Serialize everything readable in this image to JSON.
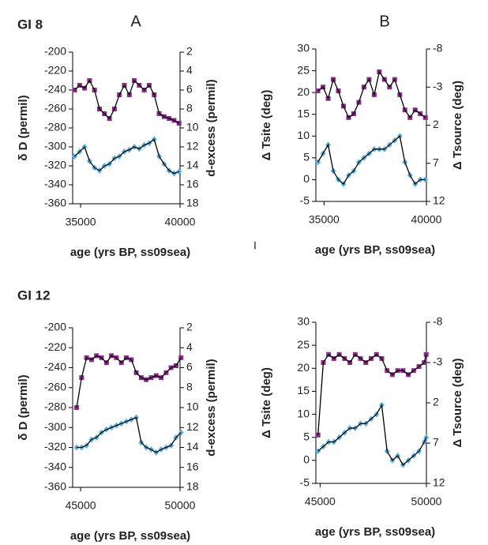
{
  "stray_mark": "I",
  "chart_data": [
    {
      "type": "scatter",
      "group_label": "GI 8",
      "panel_label": "A",
      "xlabel": "age (yrs BP, ss09sea)",
      "ylabel": "δ D (permil)",
      "y2label": "d-excess (permil)",
      "xlim": [
        34600,
        40000
      ],
      "xticks": [
        35000,
        40000
      ],
      "ylim": [
        -360,
        -200
      ],
      "yticks": [
        -360,
        -340,
        -320,
        -300,
        -280,
        -260,
        -240,
        -220,
        -200
      ],
      "y2lim": [
        2,
        18
      ],
      "y2ticks": [
        2,
        4,
        6,
        8,
        10,
        12,
        14,
        16,
        18
      ],
      "y2_reversed": true,
      "line_color": "#000000",
      "x": [
        34700,
        34950,
        35200,
        35450,
        35700,
        35950,
        36200,
        36450,
        36700,
        36950,
        37200,
        37450,
        37700,
        37950,
        38200,
        38450,
        38700,
        38950,
        39200,
        39450,
        39700,
        39950
      ],
      "series": [
        {
          "color": "#8b2a8b",
          "marker": "square",
          "axis": "y2",
          "values": [
            6,
            5.5,
            5.8,
            5,
            6,
            8,
            8.5,
            9,
            8,
            6.5,
            5.5,
            6.5,
            5,
            5.5,
            6,
            5.5,
            6.5,
            8.5,
            8.8,
            9,
            9.2,
            9.5
          ]
        },
        {
          "color": "#5ab4e0",
          "marker": "diamond",
          "values": [
            -310,
            -305,
            -300,
            -315,
            -322,
            -325,
            -320,
            -318,
            -312,
            -310,
            -305,
            -303,
            -300,
            -302,
            -298,
            -296,
            -292,
            -310,
            -318,
            -325,
            -328,
            -326
          ]
        }
      ]
    },
    {
      "type": "scatter",
      "panel_label": "B",
      "xlabel": "age (yrs BP, ss09sea)",
      "ylabel": "Δ Tsite (deg)",
      "y2label": "Δ Tsource (deg)",
      "xlim": [
        34600,
        40000
      ],
      "xticks": [
        35000,
        40000
      ],
      "ylim": [
        -5,
        30
      ],
      "yticks": [
        -5,
        0,
        5,
        10,
        15,
        20,
        25,
        30
      ],
      "y2lim": [
        -8,
        12
      ],
      "y2ticks": [
        -8,
        -3,
        2,
        7,
        12
      ],
      "y2_reversed": true,
      "line_color": "#000000",
      "x": [
        34700,
        34950,
        35200,
        35450,
        35700,
        35950,
        36200,
        36450,
        36700,
        36950,
        37200,
        37450,
        37700,
        37950,
        38200,
        38450,
        38700,
        38950,
        39200,
        39450,
        39700,
        39950
      ],
      "series": [
        {
          "color": "#8b2a8b",
          "marker": "square",
          "axis": "y2",
          "values": [
            -2.5,
            -3,
            -1.5,
            -4,
            -2.5,
            -0.5,
            1,
            0.5,
            -1,
            -3,
            -4,
            -2,
            -5,
            -4,
            -3,
            -4,
            -2,
            0,
            1,
            0,
            0.5,
            1
          ]
        },
        {
          "color": "#5ab4e0",
          "marker": "diamond",
          "values": [
            4,
            6,
            8,
            2,
            0,
            -1,
            1,
            2,
            4,
            5,
            6,
            7,
            7,
            7,
            8,
            9,
            10,
            4,
            1,
            -1,
            0,
            0
          ]
        }
      ]
    },
    {
      "type": "scatter",
      "group_label": "GI 12",
      "xlabel": "age (yrs BP, ss09sea)",
      "ylabel": "δ D (permil)",
      "y2label": "d-excess (permil)",
      "xlim": [
        44600,
        50000
      ],
      "xticks": [
        45000,
        50000
      ],
      "ylim": [
        -360,
        -200
      ],
      "yticks": [
        -360,
        -340,
        -320,
        -300,
        -280,
        -260,
        -240,
        -220,
        -200
      ],
      "y2lim": [
        2,
        18
      ],
      "y2ticks": [
        2,
        4,
        6,
        8,
        10,
        12,
        14,
        16,
        18
      ],
      "y2_reversed": true,
      "line_color": "#000000",
      "x": [
        44800,
        45050,
        45300,
        45550,
        45800,
        46050,
        46300,
        46550,
        46800,
        47050,
        47300,
        47550,
        47800,
        48050,
        48300,
        48550,
        48800,
        49050,
        49300,
        49550,
        49800,
        50050
      ],
      "series": [
        {
          "color": "#8b2a8b",
          "marker": "square",
          "axis": "y2",
          "values": [
            10,
            7,
            5,
            5.2,
            4.8,
            5,
            5.5,
            4.8,
            5,
            5.5,
            5,
            5.2,
            6.5,
            7,
            7.2,
            7,
            6.8,
            7,
            6.5,
            6,
            5.8,
            5
          ]
        },
        {
          "color": "#5ab4e0",
          "marker": "diamond",
          "values": [
            -320,
            -320,
            -318,
            -312,
            -310,
            -305,
            -302,
            -300,
            -298,
            -296,
            -294,
            -292,
            -290,
            -315,
            -320,
            -322,
            -325,
            -322,
            -320,
            -318,
            -310,
            -305
          ]
        }
      ]
    },
    {
      "type": "scatter",
      "xlabel": "age (yrs BP, ss09sea)",
      "ylabel": "Δ Tsite (deg)",
      "y2label": "Δ Tsource (deg)",
      "xlim": [
        44800,
        50000
      ],
      "xticks": [
        45000,
        50000
      ],
      "ylim": [
        -5,
        30
      ],
      "yticks": [
        -5,
        0,
        5,
        10,
        15,
        20,
        25,
        30
      ],
      "y2lim": [
        -8,
        12
      ],
      "y2ticks": [
        -8,
        -3,
        2,
        7,
        12
      ],
      "y2_reversed": true,
      "line_color": "#000000",
      "x": [
        44900,
        45150,
        45400,
        45650,
        45900,
        46150,
        46400,
        46650,
        46900,
        47150,
        47400,
        47650,
        47900,
        48150,
        48400,
        48650,
        48900,
        49150,
        49400,
        49650,
        49900,
        49990
      ],
      "series": [
        {
          "color": "#8b2a8b",
          "marker": "square",
          "axis": "y2",
          "values": [
            6,
            -3,
            -4,
            -3.5,
            -4,
            -3.5,
            -3,
            -4,
            -3.5,
            -3,
            -3.5,
            -4,
            -3.5,
            -2,
            -1.5,
            -2,
            -2,
            -1.5,
            -2,
            -2.5,
            -3,
            -4
          ]
        },
        {
          "color": "#5ab4e0",
          "marker": "diamond",
          "values": [
            2,
            3,
            4,
            4,
            5,
            6,
            7,
            7,
            8,
            8,
            9,
            10,
            12,
            2,
            0,
            1,
            -1,
            0,
            1,
            2,
            4,
            5
          ]
        }
      ]
    }
  ]
}
